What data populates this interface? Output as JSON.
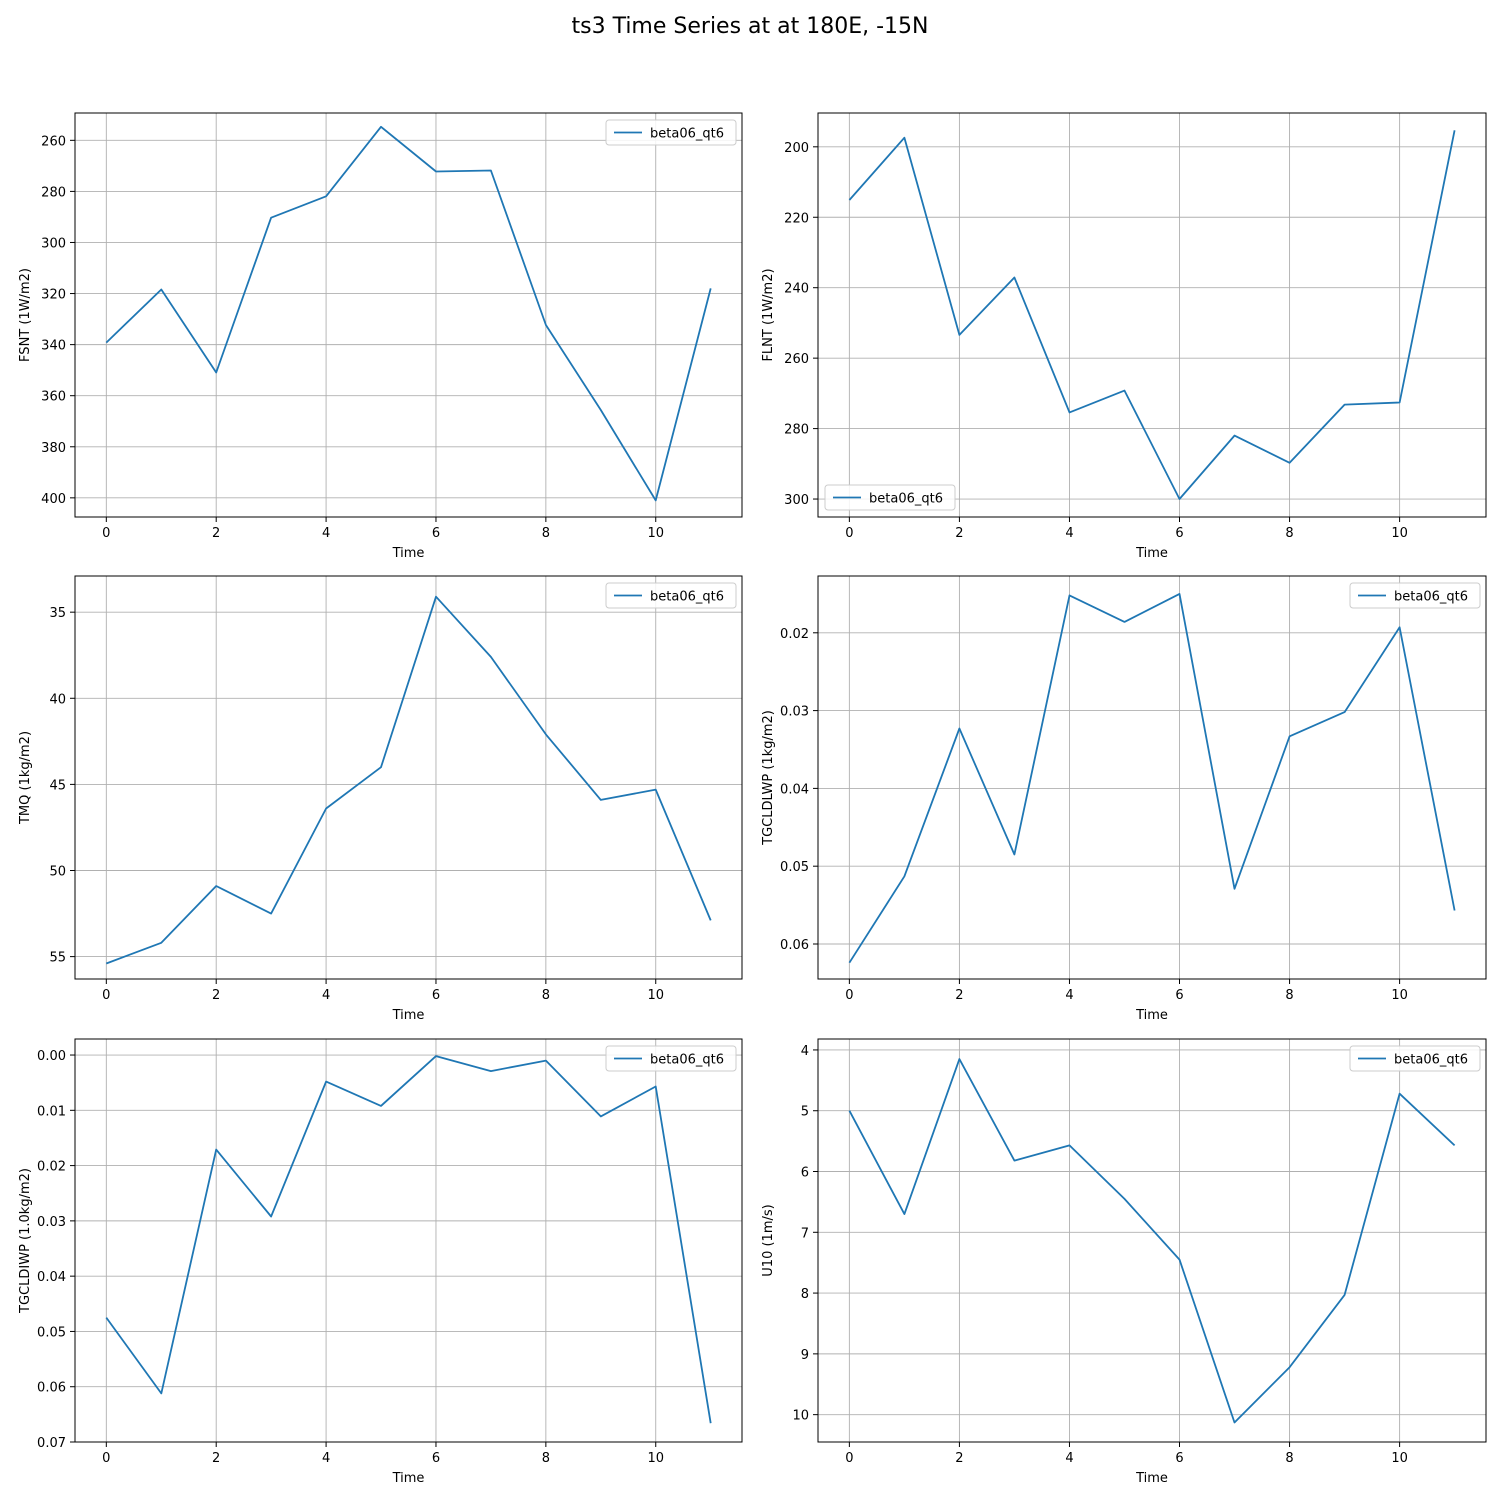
{
  "title": "ts3 Time Series at at 180E, -15N",
  "colors": {
    "series": "#1f77b4",
    "grid": "#b0b0b0",
    "axes": "#000000"
  },
  "chart_data": [
    {
      "type": "line",
      "xlabel": "Time",
      "ylabel": "FSNT (1W/m2)",
      "grid": true,
      "legend_loc": "upper right",
      "y_inverted": true,
      "xlim": [
        -0.57,
        11.57
      ],
      "ylim": [
        407.5,
        249.3
      ],
      "xticks": [
        0,
        2,
        4,
        6,
        8,
        10
      ],
      "yticks": [
        260,
        280,
        300,
        320,
        340,
        360,
        380,
        400
      ],
      "series": [
        {
          "name": "beta06_qt6",
          "x": [
            0,
            1,
            2,
            3,
            4,
            5,
            6,
            7,
            8,
            9,
            10,
            11
          ],
          "values": [
            339.2,
            318.4,
            350.9,
            290.3,
            281.9,
            254.7,
            272.2,
            271.8,
            332.3,
            365.6,
            401.0,
            318.0
          ]
        }
      ]
    },
    {
      "type": "line",
      "xlabel": "Time",
      "ylabel": "FLNT (1W/m2)",
      "grid": true,
      "legend_loc": "lower left",
      "y_inverted": true,
      "xlim": [
        -0.57,
        11.57
      ],
      "ylim": [
        305.1,
        190.4
      ],
      "xticks": [
        0,
        2,
        4,
        6,
        8,
        10
      ],
      "yticks": [
        200,
        220,
        240,
        260,
        280,
        300
      ],
      "series": [
        {
          "name": "beta06_qt6",
          "x": [
            0,
            1,
            2,
            3,
            4,
            5,
            6,
            7,
            8,
            9,
            10,
            11
          ],
          "values": [
            215.1,
            197.4,
            253.4,
            237.1,
            275.4,
            269.2,
            300.0,
            282.0,
            289.7,
            273.2,
            272.6,
            195.3
          ]
        }
      ]
    },
    {
      "type": "line",
      "xlabel": "Time",
      "ylabel": "TMQ (1kg/m2)",
      "grid": true,
      "legend_loc": "upper right",
      "y_inverted": true,
      "xlim": [
        -0.57,
        11.57
      ],
      "ylim": [
        56.3,
        32.9
      ],
      "xticks": [
        0,
        2,
        4,
        6,
        8,
        10
      ],
      "yticks": [
        35,
        40,
        45,
        50,
        55
      ],
      "series": [
        {
          "name": "beta06_qt6",
          "x": [
            0,
            1,
            2,
            3,
            4,
            5,
            6,
            7,
            8,
            9,
            10,
            11
          ],
          "values": [
            55.4,
            54.2,
            50.9,
            52.5,
            46.4,
            44.0,
            34.1,
            37.6,
            42.1,
            45.9,
            45.3,
            52.9
          ]
        }
      ]
    },
    {
      "type": "line",
      "xlabel": "Time",
      "ylabel": "TGCLDLWP (1kg/m2)",
      "grid": true,
      "legend_loc": "upper right",
      "y_inverted": true,
      "xlim": [
        -0.57,
        11.57
      ],
      "ylim": [
        0.0645,
        0.0127
      ],
      "xticks": [
        0,
        2,
        4,
        6,
        8,
        10
      ],
      "yticks": [
        0.02,
        0.03,
        0.04,
        0.05,
        0.06
      ],
      "series": [
        {
          "name": "beta06_qt6",
          "x": [
            0,
            1,
            2,
            3,
            4,
            5,
            6,
            7,
            8,
            9,
            10,
            11
          ],
          "values": [
            0.0624,
            0.0513,
            0.0323,
            0.0485,
            0.0152,
            0.0186,
            0.015,
            0.0529,
            0.0333,
            0.0302,
            0.0193,
            0.0557
          ]
        }
      ]
    },
    {
      "type": "line",
      "xlabel": "Time",
      "ylabel": "TGCLDIWP (1.0kg/m2)",
      "grid": true,
      "legend_loc": "upper right",
      "y_inverted": true,
      "xlim": [
        -0.57,
        11.57
      ],
      "ylim": [
        0.07,
        -0.0029
      ],
      "xticks": [
        0,
        2,
        4,
        6,
        8,
        10
      ],
      "yticks": [
        0.0,
        0.01,
        0.02,
        0.03,
        0.04,
        0.05,
        0.06,
        0.07
      ],
      "ytick_format": 2,
      "series": [
        {
          "name": "beta06_qt6",
          "x": [
            0,
            1,
            2,
            3,
            4,
            5,
            6,
            7,
            8,
            9,
            10,
            11
          ],
          "values": [
            0.0475,
            0.0612,
            0.0171,
            0.0292,
            0.0048,
            0.0092,
            0.0002,
            0.0029,
            0.001,
            0.0111,
            0.0057,
            0.0666
          ]
        }
      ]
    },
    {
      "type": "line",
      "xlabel": "Time",
      "ylabel": "U10 (1m/s)",
      "grid": true,
      "legend_loc": "upper right",
      "y_inverted": true,
      "xlim": [
        -0.57,
        11.57
      ],
      "ylim": [
        10.45,
        3.82
      ],
      "xticks": [
        0,
        2,
        4,
        6,
        8,
        10
      ],
      "yticks": [
        4,
        5,
        6,
        7,
        8,
        9,
        10
      ],
      "series": [
        {
          "name": "beta06_qt6",
          "x": [
            0,
            1,
            2,
            3,
            4,
            5,
            6,
            7,
            8,
            9,
            10,
            11
          ],
          "values": [
            5.0,
            6.7,
            4.15,
            5.82,
            5.57,
            6.45,
            7.45,
            10.13,
            9.22,
            8.03,
            4.72,
            5.57
          ]
        }
      ]
    }
  ]
}
